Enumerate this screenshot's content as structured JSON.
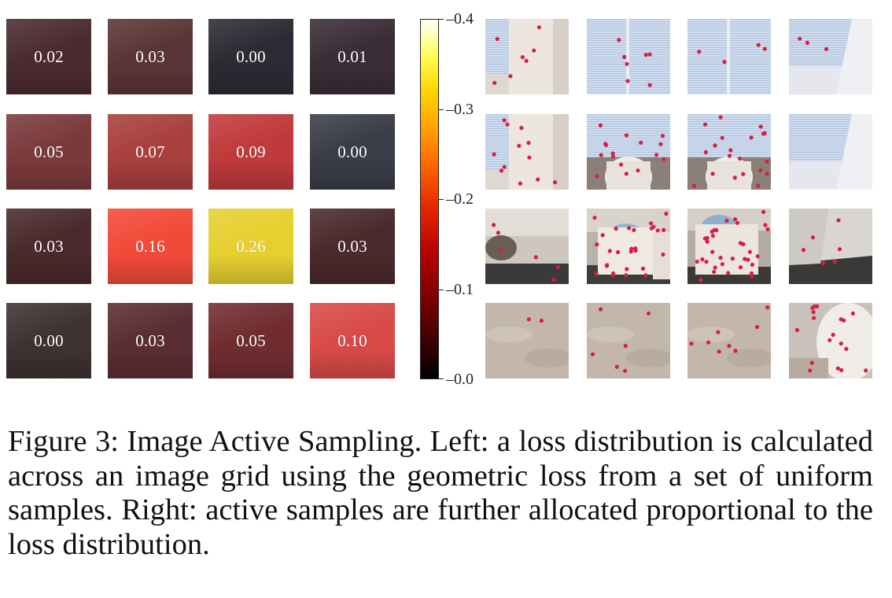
{
  "figure": {
    "loss_grid": {
      "rows": [
        [
          "0.02",
          "0.03",
          "0.00",
          "0.01"
        ],
        [
          "0.05",
          "0.07",
          "0.09",
          "0.00"
        ],
        [
          "0.03",
          "0.16",
          "0.26",
          "0.03"
        ],
        [
          "0.00",
          "0.03",
          "0.05",
          "0.10"
        ]
      ],
      "cell_colors": [
        [
          "#4a2b30",
          "#5a3536",
          "#2e2a34",
          "#3a2d36"
        ],
        [
          "#7a3a3c",
          "#a8403e",
          "#c03a3c",
          "#3a3c48"
        ],
        [
          "#4a2a2c",
          "#f24a38",
          "#e6d030",
          "#4a2a2c"
        ],
        [
          "#3e3232",
          "#5a2e30",
          "#702d30",
          "#d84a48"
        ]
      ]
    },
    "colorbar": {
      "min": 0.0,
      "max": 0.4,
      "tick_labels": [
        "0.0",
        "0.1",
        "0.2",
        "0.3",
        "0.4"
      ],
      "tick_values": [
        0.0,
        0.1,
        0.2,
        0.3,
        0.4
      ],
      "colormap": "hot"
    },
    "sample_grid": {
      "cell_scenes": [
        [
          "window-wall",
          "window-blinds",
          "window-blinds",
          "window-corner"
        ],
        [
          "window-wall",
          "chair-window",
          "chair-window",
          "window-corner"
        ],
        [
          "room-corner",
          "armchair",
          "armchair-pillow",
          "room-wall"
        ],
        [
          "floor",
          "floor",
          "floor",
          "armchair-arm"
        ]
      ],
      "dot_color": "#d91e45"
    }
  },
  "caption": {
    "text": "Figure 3: Image Active Sampling. Left: a loss distribution is calculated across an image grid using the geometric loss from a set of uniform samples. Right: active samples are further allocated proportional to the loss distribution."
  }
}
